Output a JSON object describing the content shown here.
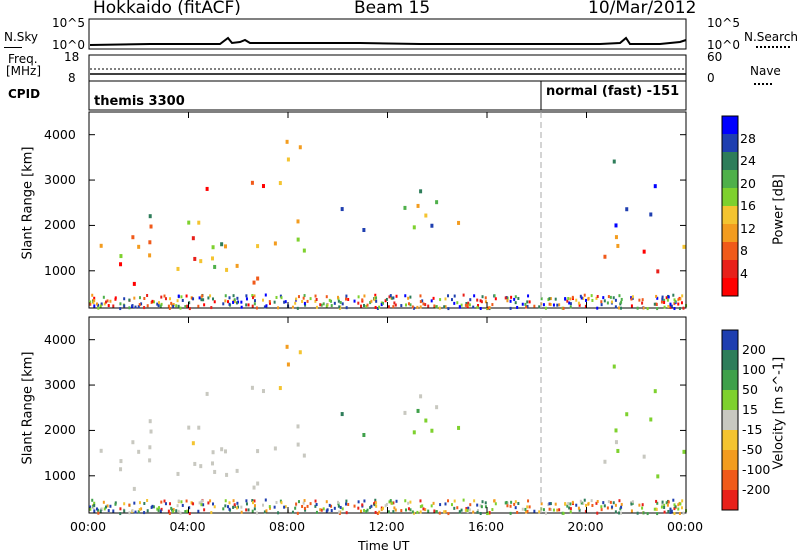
{
  "header": {
    "station": "Hokkaido (fitACF)",
    "beam": "Beam 15",
    "date": "10/Mar/2012"
  },
  "top_panels": {
    "nsky_label": "N.Sky",
    "nsky_ticks": [
      "10^5",
      "10^0"
    ],
    "nsearch_label": "N.Search",
    "nsearch_ticks": [
      "10^5",
      "10^0"
    ],
    "freq_label_line1": "Freq.",
    "freq_label_line2": "[MHz]",
    "freq_ticks": [
      "18",
      "8"
    ],
    "nave_label": "Nave",
    "nave_ticks": [
      "60",
      "0"
    ],
    "cpid_label": "CPID",
    "cpid_segments": [
      "themis 3300",
      "normal (fast) -151"
    ]
  },
  "chart_data": [
    {
      "type": "heatmap",
      "title": "",
      "ylabel": "Slant Range [km]",
      "xlabel": "",
      "xlim": [
        "00:00",
        "00:00"
      ],
      "ylim": [
        180,
        4500
      ],
      "yticks": [
        1000,
        2000,
        3000,
        4000
      ],
      "colorbar": {
        "label": "Power [dB]",
        "ticks": [
          4,
          8,
          12,
          16,
          20,
          24,
          28
        ],
        "colors": [
          "#0000ff",
          "#1f3fb0",
          "#2e7d5a",
          "#4fb04a",
          "#7ed12e",
          "#f4c430",
          "#f39c1f",
          "#f05a1a",
          "#e8201a",
          "#ff0000"
        ]
      }
    },
    {
      "type": "heatmap",
      "title": "",
      "ylabel": "Slant Range [km]",
      "xlabel": "Time UT",
      "xticks": [
        "00:00",
        "04:00",
        "08:00",
        "12:00",
        "16:00",
        "20:00",
        "00:00"
      ],
      "ylim": [
        180,
        4500
      ],
      "yticks": [
        1000,
        2000,
        3000,
        4000
      ],
      "colorbar": {
        "label": "Velocity [m s^-1]",
        "ticks": [
          200,
          100,
          50,
          15,
          -15,
          -50,
          -100,
          -200
        ],
        "colors": [
          "#1f3fb0",
          "#2e7d5a",
          "#3fa04a",
          "#7ed12e",
          "#c8c8c0",
          "#f4c430",
          "#f39c1f",
          "#f05a1a",
          "#e8201a"
        ]
      }
    }
  ]
}
